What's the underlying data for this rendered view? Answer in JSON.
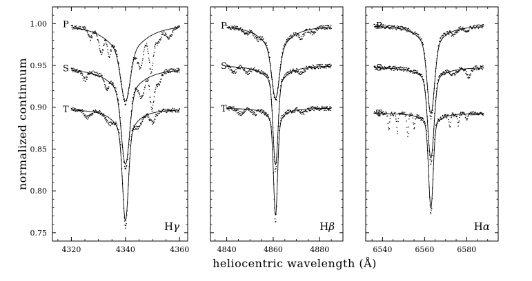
{
  "chart_data": {
    "type": "line",
    "xlabel": "heliocentric wavelength (Å)",
    "ylabel": "normalized continuum",
    "ylim": [
      0.74,
      1.02
    ],
    "yticks": [
      "0.75",
      "0.80",
      "0.85",
      "0.90",
      "0.95",
      "1.00"
    ],
    "ytick_values": [
      0.75,
      0.8,
      0.85,
      0.9,
      0.95,
      1.0
    ],
    "panels": [
      {
        "label": "Hγ",
        "label_base": "H",
        "label_greek": "γ",
        "center": 4340,
        "xlim": [
          4313,
          4363
        ],
        "xticks": [
          "4320",
          "4340",
          "4360"
        ],
        "xtick_values": [
          4320,
          4340,
          4360
        ],
        "data_range": [
          4320,
          4360
        ],
        "series": [
          {
            "name": "P",
            "offset": 1.0,
            "depth": 0.06,
            "width": 1.6,
            "wing": 0.035,
            "wing_width": 7,
            "features": [
              [
                4327,
                0.01,
                0.6
              ],
              [
                4331,
                0.022,
                0.8
              ],
              [
                4334,
                0.018,
                0.6
              ],
              [
                4345.5,
                0.03,
                1.2
              ],
              [
                4349.5,
                0.045,
                0.8
              ],
              [
                4352,
                0.015,
                0.9
              ],
              [
                4356,
                0.012,
                1.1
              ]
            ]
          },
          {
            "name": "S",
            "offset": 0.947,
            "depth": 0.09,
            "width": 1.4,
            "wing": 0.03,
            "wing_width": 6,
            "features": [
              [
                4325,
                0.01,
                0.8
              ],
              [
                4333,
                0.012,
                0.8
              ],
              [
                4346,
                0.02,
                1.0
              ],
              [
                4349.8,
                0.04,
                0.7
              ],
              [
                4352,
                0.015,
                1.0
              ]
            ]
          },
          {
            "name": "T",
            "offset": 0.898,
            "depth": 0.11,
            "width": 1.0,
            "wing": 0.03,
            "wing_width": 4,
            "features": [
              [
                4326,
                0.008,
                1.0
              ],
              [
                4334,
                0.008,
                1.2
              ],
              [
                4345,
                0.01,
                1.2
              ],
              [
                4350,
                0.012,
                1.0
              ]
            ]
          }
        ]
      },
      {
        "label": "Hβ",
        "label_base": "H",
        "label_greek": "β",
        "center": 4861,
        "xlim": [
          4833,
          4890
        ],
        "xticks": [
          "4840",
          "4860",
          "4880"
        ],
        "xtick_values": [
          4840,
          4860,
          4880
        ],
        "data_range": [
          4840,
          4885
        ],
        "series": [
          {
            "name": "P",
            "offset": 0.998,
            "depth": 0.06,
            "width": 1.5,
            "wing": 0.03,
            "wing_width": 6,
            "features": [
              [
                4848,
                0.006,
                1.0
              ],
              [
                4853,
                0.006,
                1.0
              ],
              [
                4872,
                0.008,
                1.2
              ],
              [
                4877,
                0.006,
                1.0
              ]
            ]
          },
          {
            "name": "S",
            "offset": 0.95,
            "depth": 0.105,
            "width": 1.0,
            "wing": 0.02,
            "wing_width": 5,
            "features": [
              [
                4843,
                0.008,
                1.0
              ],
              [
                4849,
                0.006,
                1.0
              ],
              [
                4872,
                0.006,
                1.2
              ]
            ]
          },
          {
            "name": "T",
            "offset": 0.899,
            "depth": 0.115,
            "width": 0.8,
            "wing": 0.02,
            "wing_width": 3,
            "features": [
              [
                4846,
                0.006,
                1.2
              ],
              [
                4852,
                0.005,
                1.0
              ],
              [
                4873,
                0.005,
                1.0
              ]
            ]
          }
        ]
      },
      {
        "label": "Hα",
        "label_base": "H",
        "label_greek": "α",
        "center": 6563,
        "xlim": [
          6532,
          6595
        ],
        "xticks": [
          "6540",
          "6560",
          "6580"
        ],
        "xtick_values": [
          6540,
          6560,
          6580
        ],
        "data_range": [
          6536,
          6588
        ],
        "series": [
          {
            "name": "P",
            "offset": 0.998,
            "depth": 0.085,
            "width": 1.6,
            "wing": 0.025,
            "wing_width": 6,
            "features": [
              [
                6574,
                0.006,
                1.2
              ],
              [
                6580,
                0.004,
                1.0
              ]
            ]
          },
          {
            "name": "S",
            "offset": 0.948,
            "depth": 0.1,
            "width": 1.4,
            "wing": 0.015,
            "wing_width": 6,
            "features": [
              [
                6574,
                0.006,
                1.2
              ],
              [
                6581,
                0.01,
                1.0
              ]
            ]
          },
          {
            "name": "T",
            "offset": 0.893,
            "depth": 0.105,
            "width": 1.0,
            "wing": 0.015,
            "wing_width": 4,
            "features": [
              [
                6543,
                0.02,
                0.35
              ],
              [
                6547,
                0.022,
                0.35
              ],
              [
                6552,
                0.025,
                0.35
              ],
              [
                6555,
                0.015,
                0.35
              ],
              [
                6572,
                0.014,
                0.35
              ],
              [
                6576,
                0.012,
                0.4
              ],
              [
                6580,
                0.006,
                0.4
              ]
            ]
          }
        ]
      }
    ]
  }
}
